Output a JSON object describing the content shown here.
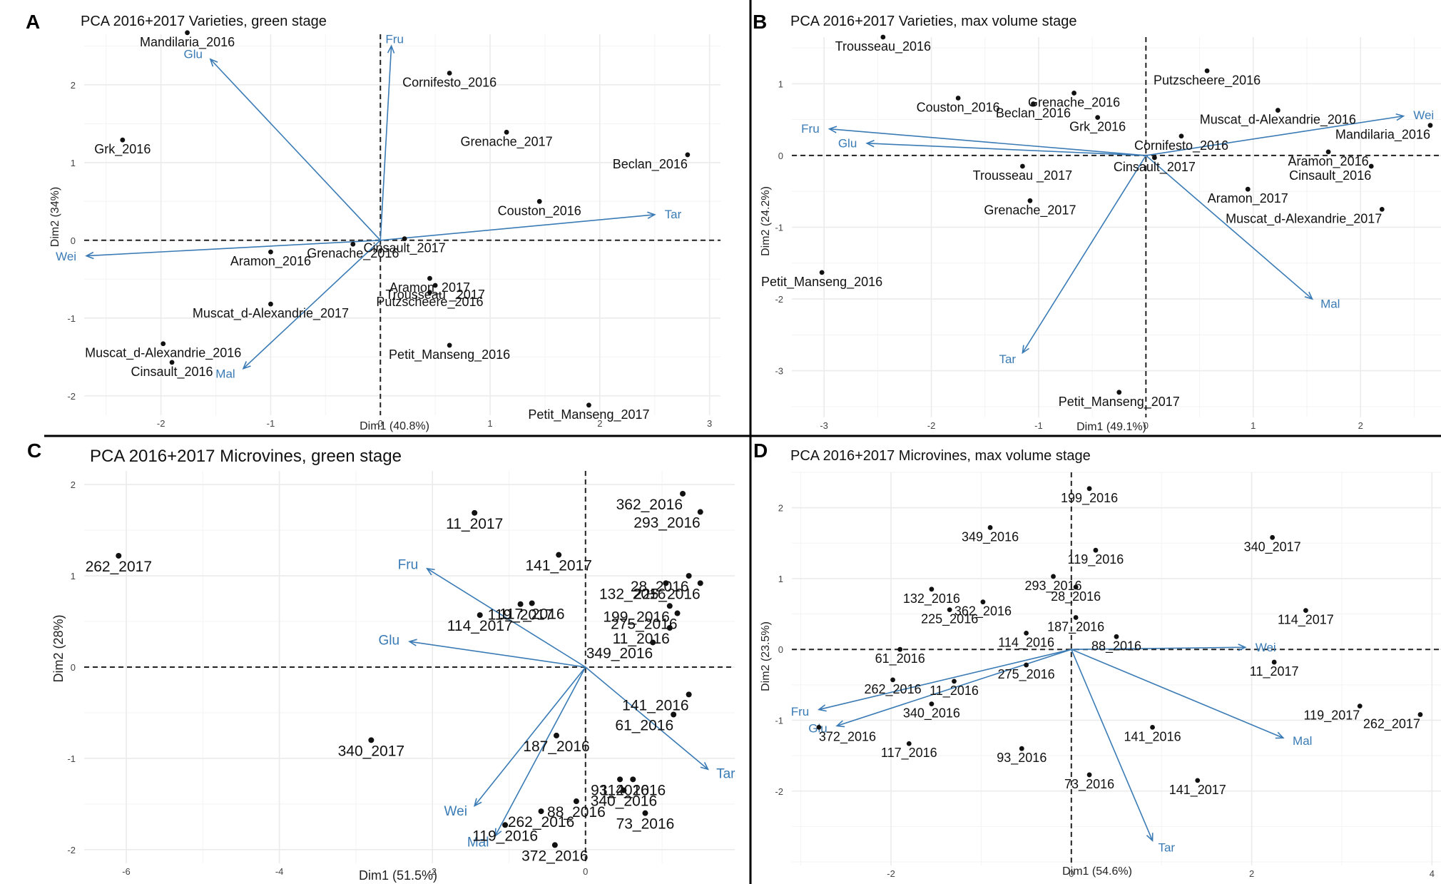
{
  "colors": {
    "vector": "#3a7bb5",
    "point": "#111111",
    "grid": "#ebebeb",
    "zero": "#222222",
    "divider": "#000000"
  },
  "chart_data": [
    {
      "type": "scatter",
      "panel_label": "A",
      "title": "PCA 2016+2017 Varieties, green stage",
      "xlabel": "Dim1 (40.8%)",
      "ylabel": "Dim2 (34%)",
      "xlim": [
        -2.7,
        3.1
      ],
      "ylim": [
        -2.25,
        2.65
      ],
      "xticks": [
        -2,
        -1,
        0,
        1,
        2,
        3
      ],
      "yticks": [
        -2,
        -1,
        0,
        1,
        2
      ],
      "points": [
        {
          "label": "Mandilaria_2016",
          "x": -1.76,
          "y": 2.67
        },
        {
          "label": "Cornifesto_2016",
          "x": 0.63,
          "y": 2.15
        },
        {
          "label": "Grenache_2017",
          "x": 1.15,
          "y": 1.39
        },
        {
          "label": "Grk_2016",
          "x": -2.35,
          "y": 1.29
        },
        {
          "label": "Beclan_2016",
          "x": 2.8,
          "y": 1.1
        },
        {
          "label": "Couston_2016",
          "x": 1.45,
          "y": 0.5
        },
        {
          "label": "Cinsault_2017",
          "x": 0.22,
          "y": 0.02
        },
        {
          "label": "Grenache_2016",
          "x": -0.25,
          "y": -0.05
        },
        {
          "label": "Aramon_2016",
          "x": -1.0,
          "y": -0.15
        },
        {
          "label": "Aramon_2017",
          "x": 0.45,
          "y": -0.49
        },
        {
          "label": "Trousseau _2017",
          "x": 0.5,
          "y": -0.58
        },
        {
          "label": "Putzscheere_2016",
          "x": 0.45,
          "y": -0.67
        },
        {
          "label": "Muscat_d-Alexandrie_2017",
          "x": -1.0,
          "y": -0.82
        },
        {
          "label": "Muscat_d-Alexandrie_2016",
          "x": -1.98,
          "y": -1.33
        },
        {
          "label": "Petit_Manseng_2016",
          "x": 0.63,
          "y": -1.35
        },
        {
          "label": "Cinsault_2016",
          "x": -1.9,
          "y": -1.57
        },
        {
          "label": "Petit_Manseng_2017",
          "x": 1.9,
          "y": -2.12
        }
      ],
      "vectors": [
        {
          "label": "Fru",
          "x": 0.1,
          "y": 2.5
        },
        {
          "label": "Glu",
          "x": -1.55,
          "y": 2.33
        },
        {
          "label": "Tar",
          "x": 2.5,
          "y": 0.33
        },
        {
          "label": "Wei",
          "x": -2.68,
          "y": -0.2
        },
        {
          "label": "Mal",
          "x": -1.25,
          "y": -1.65
        }
      ]
    },
    {
      "type": "scatter",
      "panel_label": "B",
      "title": "PCA 2016+2017 Varieties, max volume stage",
      "xlabel": "Dim1 (49.1%)",
      "ylabel": "Dim2 (24.2%)",
      "xlim": [
        -3.3,
        2.75
      ],
      "ylim": [
        -3.65,
        1.65
      ],
      "xticks": [
        -3,
        -2,
        -1,
        0,
        1,
        2
      ],
      "yticks": [
        -3,
        -2,
        -1,
        0,
        1
      ],
      "points": [
        {
          "label": "Trousseau_2016",
          "x": -2.45,
          "y": 1.65
        },
        {
          "label": "Putzscheere_2016",
          "x": 0.57,
          "y": 1.18
        },
        {
          "label": "Couston_2016",
          "x": -1.75,
          "y": 0.8
        },
        {
          "label": "Grenache_2016",
          "x": -0.67,
          "y": 0.87
        },
        {
          "label": "Beclan_2016",
          "x": -1.05,
          "y": 0.72
        },
        {
          "label": "Muscat_d-Alexandrie_2016",
          "x": 1.23,
          "y": 0.63
        },
        {
          "label": "Grk_2016",
          "x": -0.45,
          "y": 0.53
        },
        {
          "label": "Mandilaria_2016",
          "x": 2.65,
          "y": 0.42
        },
        {
          "label": "Cornifesto_2016",
          "x": 0.33,
          "y": 0.27
        },
        {
          "label": "Aramon_2016",
          "x": 1.7,
          "y": 0.05
        },
        {
          "label": "Trousseau _2017",
          "x": -1.15,
          "y": -0.15
        },
        {
          "label": "Cinsault_2017",
          "x": 0.08,
          "y": -0.03
        },
        {
          "label": "Cinsault_2016",
          "x": 2.1,
          "y": -0.15
        },
        {
          "label": "Aramon_2017",
          "x": 0.95,
          "y": -0.47
        },
        {
          "label": "Grenache_2017",
          "x": -1.08,
          "y": -0.63
        },
        {
          "label": "Muscat_d-Alexandrie_2017",
          "x": 2.2,
          "y": -0.75
        },
        {
          "label": "Petit_Manseng_2016",
          "x": -3.02,
          "y": -1.63
        },
        {
          "label": "Petit_Manseng_2017",
          "x": -0.25,
          "y": -3.3
        }
      ],
      "vectors": [
        {
          "label": "Wei",
          "x": 2.4,
          "y": 0.55
        },
        {
          "label": "Fru",
          "x": -2.95,
          "y": 0.37
        },
        {
          "label": "Glu",
          "x": -2.6,
          "y": 0.17
        },
        {
          "label": "Mal",
          "x": 1.55,
          "y": -2.0
        },
        {
          "label": "Tar",
          "x": -1.15,
          "y": -2.75
        }
      ]
    },
    {
      "type": "scatter",
      "panel_label": "C",
      "title": "PCA 2016+2017 Microvines, green stage",
      "xlabel": "Dim1 (51.5%)",
      "ylabel": "Dim2 (28%)",
      "xlim": [
        -6.55,
        1.95
      ],
      "ylim": [
        -2.15,
        2.15
      ],
      "xticks": [
        -6,
        -4,
        -2,
        0
      ],
      "yticks": [
        -2,
        -1,
        0,
        1,
        2
      ],
      "points": [
        {
          "label": "362_2016",
          "x": 1.27,
          "y": 1.9
        },
        {
          "label": "293_2016",
          "x": 1.5,
          "y": 1.7
        },
        {
          "label": "11_2017",
          "x": -1.45,
          "y": 1.69
        },
        {
          "label": "262_2017",
          "x": -6.1,
          "y": 1.22
        },
        {
          "label": "141_2017",
          "x": -0.35,
          "y": 1.23
        },
        {
          "label": "28_2016",
          "x": 1.35,
          "y": 1.0
        },
        {
          "label": "132_2016",
          "x": 1.05,
          "y": 0.92
        },
        {
          "label": "225_2016",
          "x": 1.5,
          "y": 0.92
        },
        {
          "label": "117_2016",
          "x": -0.7,
          "y": 0.7
        },
        {
          "label": "119_2017",
          "x": -0.85,
          "y": 0.69
        },
        {
          "label": "199_2016",
          "x": 1.1,
          "y": 0.67
        },
        {
          "label": "114_2017",
          "x": -1.38,
          "y": 0.57
        },
        {
          "label": "275_2016",
          "x": 1.2,
          "y": 0.59
        },
        {
          "label": "11_2016",
          "x": 1.1,
          "y": 0.43
        },
        {
          "label": "349_2016",
          "x": 0.88,
          "y": 0.27
        },
        {
          "label": "141_2016",
          "x": 1.35,
          "y": -0.3
        },
        {
          "label": "61_2016",
          "x": 1.15,
          "y": -0.52
        },
        {
          "label": "187_2016",
          "x": -0.38,
          "y": -0.75
        },
        {
          "label": "340_2017",
          "x": -2.8,
          "y": -0.8
        },
        {
          "label": "93_2016",
          "x": 0.45,
          "y": -1.23
        },
        {
          "label": "114_2016",
          "x": 0.62,
          "y": -1.23
        },
        {
          "label": "88_2016",
          "x": -0.12,
          "y": -1.47
        },
        {
          "label": "340_2016",
          "x": 0.5,
          "y": -1.35
        },
        {
          "label": "73_2016",
          "x": 0.78,
          "y": -1.6
        },
        {
          "label": "262_2016",
          "x": -0.58,
          "y": -1.58
        },
        {
          "label": "119_2016",
          "x": -1.05,
          "y": -1.73
        },
        {
          "label": "372_2016",
          "x": -0.4,
          "y": -1.95
        }
      ],
      "vectors": [
        {
          "label": "Fru",
          "x": -2.07,
          "y": 1.08
        },
        {
          "label": "Glu",
          "x": -2.3,
          "y": 0.28
        },
        {
          "label": "Tar",
          "x": 1.6,
          "y": -1.12
        },
        {
          "label": "Wei",
          "x": -1.45,
          "y": -1.52
        },
        {
          "label": "Mal",
          "x": -1.18,
          "y": -1.85
        }
      ]
    },
    {
      "type": "scatter",
      "panel_label": "D",
      "title": "PCA 2016+2017 Microvines, max volume stage",
      "xlabel": "Dim1 (54.6%)",
      "ylabel": "Dim2 (23.5%)",
      "xlim": [
        -3.1,
        4.1
      ],
      "ylim": [
        -3.05,
        2.5
      ],
      "xticks": [
        -2,
        0,
        2,
        4
      ],
      "yticks": [
        -2,
        -1,
        0,
        1,
        2
      ],
      "points": [
        {
          "label": "199_2016",
          "x": 0.2,
          "y": 2.27
        },
        {
          "label": "349_2016",
          "x": -0.9,
          "y": 1.72
        },
        {
          "label": "340_2017",
          "x": 2.23,
          "y": 1.58
        },
        {
          "label": "119_2016",
          "x": 0.27,
          "y": 1.4
        },
        {
          "label": "293_2016",
          "x": -0.2,
          "y": 1.03
        },
        {
          "label": "132_2016",
          "x": -1.55,
          "y": 0.85
        },
        {
          "label": "28_2016",
          "x": 0.05,
          "y": 0.88
        },
        {
          "label": "362_2016",
          "x": -0.98,
          "y": 0.67
        },
        {
          "label": "187_2016",
          "x": 0.05,
          "y": 0.45
        },
        {
          "label": "225_2016",
          "x": -1.35,
          "y": 0.56
        },
        {
          "label": "114_2017",
          "x": 2.6,
          "y": 0.55
        },
        {
          "label": "88_2016",
          "x": 0.5,
          "y": 0.18
        },
        {
          "label": "114_2016",
          "x": -0.5,
          "y": 0.23
        },
        {
          "label": "61_2016",
          "x": -1.9,
          "y": 0.0
        },
        {
          "label": "11_2017",
          "x": 2.25,
          "y": -0.18
        },
        {
          "label": "275_2016",
          "x": -0.5,
          "y": -0.22
        },
        {
          "label": "262_2016",
          "x": -1.98,
          "y": -0.43
        },
        {
          "label": "11_2016",
          "x": -1.3,
          "y": -0.45
        },
        {
          "label": "340_2016",
          "x": -1.55,
          "y": -0.77
        },
        {
          "label": "119_2017",
          "x": 3.2,
          "y": -0.8
        },
        {
          "label": "262_2017",
          "x": 3.87,
          "y": -0.92
        },
        {
          "label": "372_2016",
          "x": -2.8,
          "y": -1.1
        },
        {
          "label": "141_2016",
          "x": 0.9,
          "y": -1.1
        },
        {
          "label": "117_2016",
          "x": -1.8,
          "y": -1.33
        },
        {
          "label": "93_2016",
          "x": -0.55,
          "y": -1.4
        },
        {
          "label": "73_2016",
          "x": 0.2,
          "y": -1.77
        },
        {
          "label": "141_2017",
          "x": 1.4,
          "y": -1.85
        }
      ],
      "vectors": [
        {
          "label": "Wei",
          "x": 1.93,
          "y": 0.03
        },
        {
          "label": "Fru",
          "x": -2.8,
          "y": -0.85
        },
        {
          "label": "Glu",
          "x": -2.6,
          "y": -1.08
        },
        {
          "label": "Mal",
          "x": 2.35,
          "y": -1.25
        },
        {
          "label": "Tar",
          "x": 0.9,
          "y": -2.7
        }
      ]
    }
  ]
}
